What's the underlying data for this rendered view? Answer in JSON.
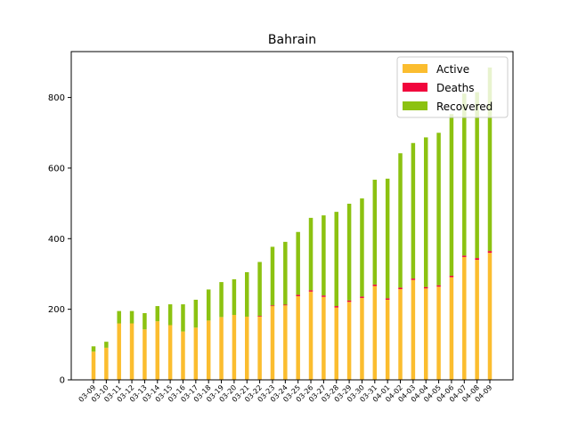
{
  "chart_data": {
    "type": "bar",
    "stacked": true,
    "title": "Bahrain",
    "xlabel": "",
    "ylabel": "",
    "ylim": [
      0,
      930
    ],
    "yticks": [
      0,
      200,
      400,
      600,
      800
    ],
    "grid": false,
    "legend_position": "top-right",
    "categories": [
      "03-09",
      "03-10",
      "03-11",
      "03-12",
      "03-13",
      "03-14",
      "03-15",
      "03-16",
      "03-17",
      "03-18",
      "03-19",
      "03-20",
      "03-21",
      "03-22",
      "03-23",
      "03-24",
      "03-25",
      "03-26",
      "03-27",
      "03-28",
      "03-29",
      "03-30",
      "03-31",
      "04-01",
      "04-02",
      "04-03",
      "04-04",
      "04-05",
      "04-06",
      "04-07",
      "04-08",
      "04-09"
    ],
    "series": [
      {
        "name": "Active",
        "color": "#fbbd2f",
        "values": [
          80,
          91,
          160,
          160,
          143,
          166,
          155,
          137,
          148,
          168,
          178,
          184,
          179,
          180,
          210,
          211,
          237,
          250,
          235,
          205,
          221,
          232,
          266,
          227,
          257,
          283,
          259,
          264,
          291,
          348,
          340,
          360
        ]
      },
      {
        "name": "Deaths",
        "color": "#f1053c",
        "values": [
          0,
          0,
          0,
          0,
          0,
          0,
          0,
          0,
          0,
          0,
          0,
          0,
          0,
          1,
          1,
          2,
          4,
          4,
          4,
          4,
          4,
          4,
          4,
          4,
          4,
          4,
          4,
          4,
          4,
          4,
          5,
          5
        ]
      },
      {
        "name": "Recovered",
        "color": "#8cc211",
        "values": [
          15,
          17,
          35,
          35,
          46,
          43,
          59,
          77,
          79,
          88,
          99,
          101,
          126,
          153,
          166,
          178,
          178,
          205,
          227,
          267,
          274,
          278,
          297,
          339,
          381,
          384,
          424,
          432,
          458,
          459,
          470,
          520
        ]
      }
    ]
  }
}
